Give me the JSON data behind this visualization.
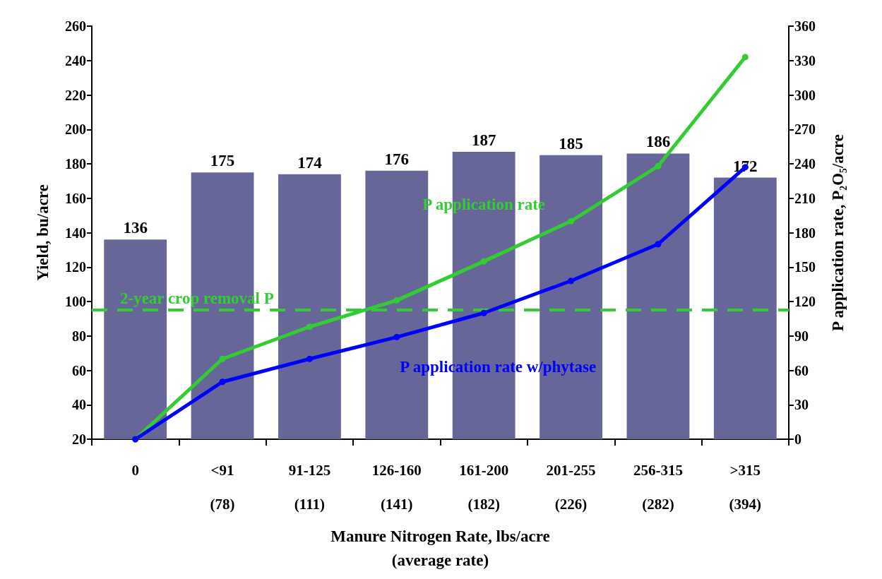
{
  "chart_data": {
    "type": "bar",
    "xlabel": "Manure Nitrogen Rate, lbs/acre\n(average rate)",
    "ylabel": "Yield, bu/acre",
    "y2label": "P application rate, P₂O₅/acre",
    "categories": [
      "0",
      "<91\n(78)",
      "91-125\n(111)",
      "126-160\n(141)",
      "161-200\n(182)",
      "201-255\n(226)",
      "256-315\n(282)",
      ">315\n(394)"
    ],
    "series": [
      {
        "color": "#666699",
        "values": [
          136,
          175,
          174,
          176,
          187,
          185,
          186,
          172
        ],
        "value_labels": [
          "136",
          "175",
          "174",
          "176",
          "187",
          "185",
          "186",
          "172"
        ]
      },
      {
        "type": "line",
        "name": "P application rate",
        "axis": "y2",
        "color": "#33cc33",
        "values": [
          0,
          70,
          98,
          121,
          155,
          190,
          238,
          333
        ]
      },
      {
        "type": "line",
        "name": "P application rate w/phytase",
        "axis": "y2",
        "color": "#0000ff",
        "values": [
          0,
          50,
          70,
          89,
          110,
          138,
          170,
          237
        ]
      }
    ],
    "marker": "circle",
    "grid": false,
    "legend": false,
    "ylim": [
      20,
      260
    ],
    "yticks": [
      20,
      40,
      60,
      80,
      100,
      120,
      140,
      160,
      180,
      200,
      220,
      240,
      260
    ],
    "y2lim": [
      0,
      360
    ],
    "y2ticks": [
      0,
      30,
      60,
      90,
      120,
      150,
      180,
      210,
      240,
      270,
      300,
      330,
      360
    ],
    "ref_lines": [
      {
        "axis": "y2",
        "value": 113,
        "label": "2-year crop removal P",
        "color": "#33cc33",
        "line_style": "dashed"
      }
    ]
  }
}
